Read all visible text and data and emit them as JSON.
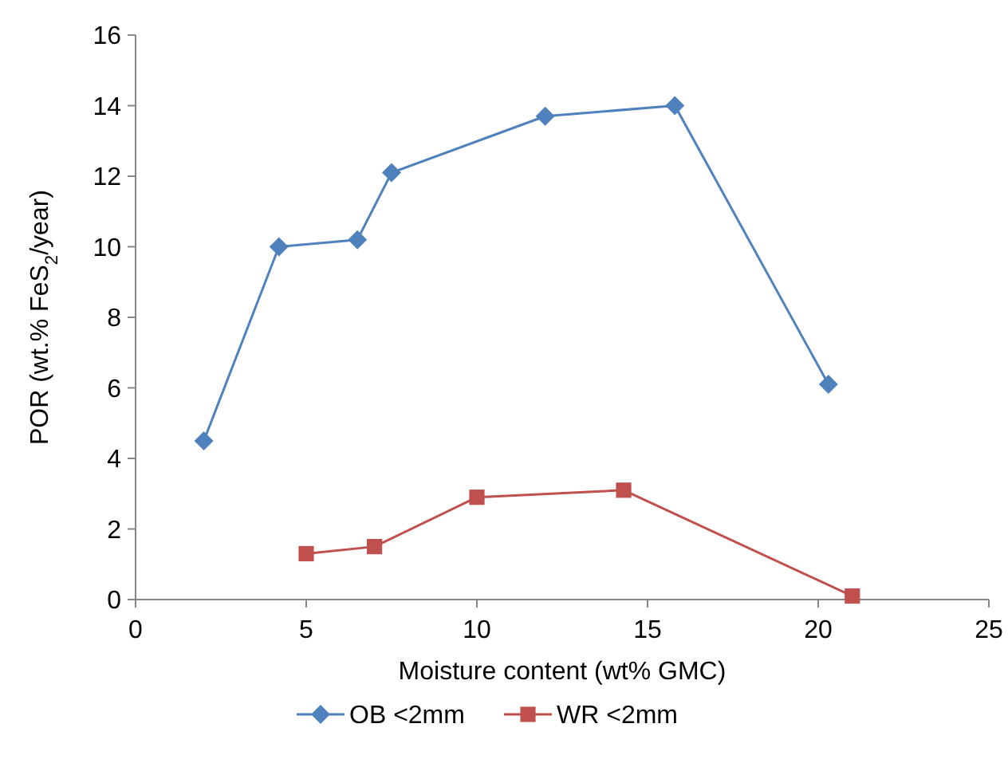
{
  "chart_data": {
    "type": "line",
    "xlabel": "Moisture content (wt% GMC)",
    "ylabel": "POR (wt.% FeS$_{2}$/year)",
    "xlim": [
      0,
      25
    ],
    "xticks": [
      0,
      5,
      10,
      15,
      20,
      25
    ],
    "ylim": [
      0,
      16
    ],
    "yticks": [
      0,
      2,
      4,
      6,
      8,
      10,
      12,
      14,
      16
    ],
    "grid": false,
    "legend": "bottom",
    "series": [
      {
        "name": "OB <2mm",
        "color": "#4f81bd",
        "marker": "diamond",
        "x": [
          2,
          4.2,
          6.5,
          7.5,
          12,
          15.8,
          20.3
        ],
        "values": [
          4.5,
          10,
          10.2,
          12.1,
          13.7,
          14,
          6.1
        ]
      },
      {
        "name": "WR <2mm",
        "color": "#c0504d",
        "marker": "square",
        "x": [
          5,
          7,
          10,
          14.3,
          21
        ],
        "values": [
          1.3,
          1.5,
          2.9,
          3.1,
          0.1
        ]
      }
    ]
  }
}
